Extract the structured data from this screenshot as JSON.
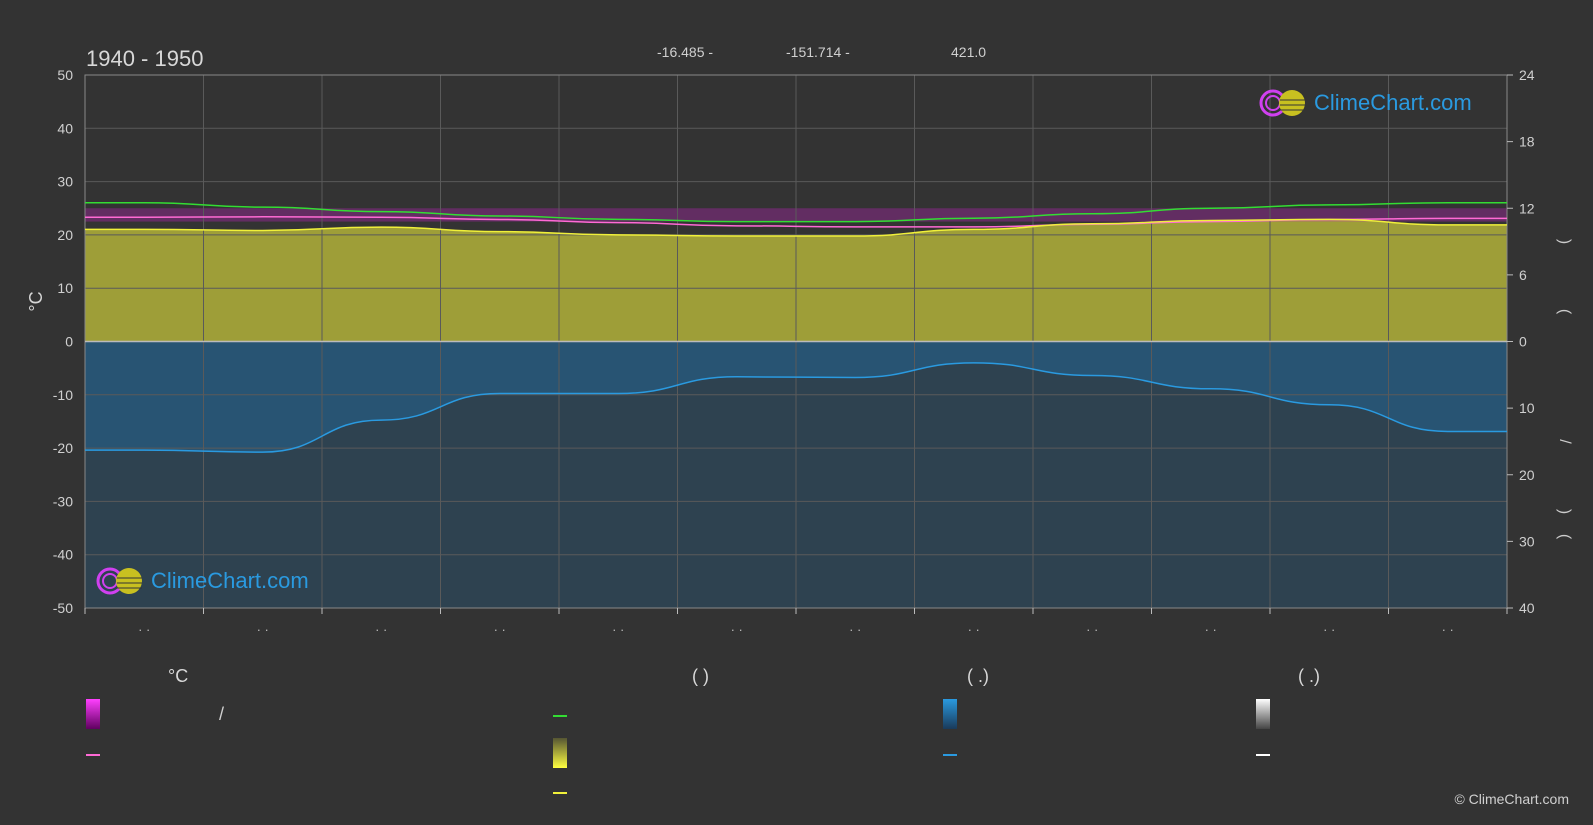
{
  "header": {
    "title": "1940 - 1950",
    "coords": [
      "-16.485 -",
      "-151.714 -",
      "421.0"
    ]
  },
  "logo": {
    "text": "ClimeChart.com"
  },
  "copyright": "© ClimeChart.com",
  "colors": {
    "background": "#333333",
    "grid": "#5a5a5a",
    "sunshine": "#c8c83a",
    "precip": "#1f6fa8",
    "mean_temp_line": "#ff6ad5",
    "daylight_line": "#33dd33",
    "sunshine_line": "#f0f03a",
    "precip_line": "#2a9ae0",
    "humidity_band": "#d020d0"
  },
  "chart_data": {
    "type": "area",
    "title": "1940 - 1950",
    "ylabel_left": "°C",
    "ylim_left": [
      -50,
      50
    ],
    "yticks_left": [
      50,
      40,
      30,
      20,
      10,
      0,
      -10,
      -20,
      -30,
      -40,
      -50
    ],
    "yticks_right_top": [
      24,
      18,
      12,
      6,
      0
    ],
    "yticks_right_bottom": [
      10,
      20,
      30,
      40
    ],
    "right_axis_glyphs": [
      ")",
      "(",
      "/",
      ")",
      "("
    ],
    "x_tick_labels": [
      "· ·",
      "· ·",
      "· ·",
      "· ·",
      "· ·",
      "· ·",
      "· ·",
      "· ·",
      "· ·",
      "· ·",
      "· ·",
      "· ·"
    ],
    "x": [
      0,
      1,
      2,
      3,
      4,
      5,
      6,
      7,
      8,
      9,
      10,
      11
    ],
    "series": [
      {
        "key": "daylight_hours",
        "values": [
          12.5,
          12.1,
          11.7,
          11.3,
          11.0,
          10.8,
          10.8,
          11.1,
          11.5,
          12.0,
          12.3,
          12.5
        ]
      },
      {
        "key": "sunshine_hours",
        "values": [
          10.1,
          10.0,
          10.3,
          9.9,
          9.6,
          9.5,
          9.5,
          10.1,
          10.6,
          10.9,
          11.0,
          10.5
        ]
      },
      {
        "key": "mean_temperature",
        "values": [
          23.3,
          23.4,
          23.3,
          22.9,
          22.3,
          21.7,
          21.5,
          21.5,
          22.0,
          22.5,
          22.9,
          23.1
        ]
      },
      {
        "key": "precipitation_mm",
        "values": [
          16.3,
          16.6,
          11.8,
          7.8,
          7.8,
          5.3,
          5.4,
          3.2,
          5.1,
          7.1,
          9.5,
          13.5
        ]
      }
    ],
    "ylim_right_top": [
      0,
      24
    ],
    "ylim_right_bottom": [
      0,
      40
    ],
    "humidity_band_range": [
      22.5,
      25.0
    ]
  },
  "legend": {
    "col1": {
      "heading": "°C",
      "item_separator": "/"
    },
    "col2": {
      "heading": "(          )"
    },
    "col3": {
      "heading": "(    .)"
    },
    "col4": {
      "heading": "(    .)"
    }
  }
}
